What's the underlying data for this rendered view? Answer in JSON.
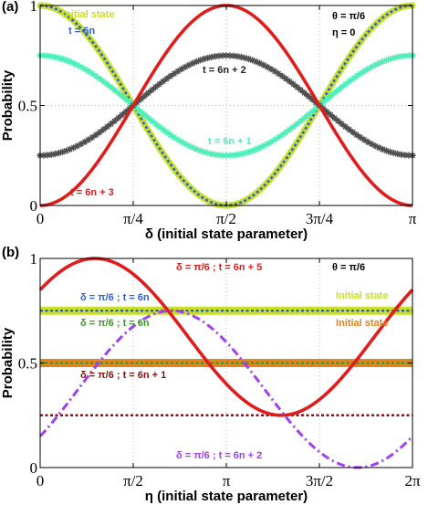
{
  "chart_data": [
    {
      "type": "line",
      "panel_label": "(a)",
      "xlabel": "δ (initial state parameter)",
      "ylabel": "Probability",
      "xlim": [
        0,
        3.14159
      ],
      "ylim": [
        0,
        1
      ],
      "xticks": [
        {
          "value": 0,
          "label": "0"
        },
        {
          "value": 0.7854,
          "label": "π/4"
        },
        {
          "value": 1.5708,
          "label": "π/2"
        },
        {
          "value": 2.3562,
          "label": "3π/4"
        },
        {
          "value": 3.14159,
          "label": "π"
        }
      ],
      "yticks": [
        {
          "value": 0,
          "label": "0"
        },
        {
          "value": 0.5,
          "label": "0.5"
        },
        {
          "value": 1,
          "label": "1"
        }
      ],
      "grid": "dotted",
      "params_text": [
        "θ = π/6",
        "η = 0"
      ],
      "series": [
        {
          "name": "Initial state",
          "color": "#c8e02c",
          "formula": "cos2",
          "amp": 1.0,
          "offset": 0,
          "style": "thick"
        },
        {
          "name": "t = 6n",
          "color": "#2f5fd8",
          "formula": "cos2",
          "amp": 1.0,
          "offset": 0,
          "style": "dotted"
        },
        {
          "name": "t = 6n + 1",
          "color": "#4ef0b8",
          "formula": "cos2",
          "amp": 0.5,
          "offset": 0.25,
          "style": "star"
        },
        {
          "name": "t = 6n + 2",
          "color": "#505050",
          "formula": "sin2",
          "amp": 0.5,
          "offset": 0.25,
          "style": "star"
        },
        {
          "name": "t = 6n + 3",
          "color": "#e01c1c",
          "formula": "sin2",
          "amp": 1.0,
          "offset": 0,
          "style": "solid"
        }
      ]
    },
    {
      "type": "line",
      "panel_label": "(b)",
      "xlabel": "η (initial state parameter)",
      "ylabel": "Probability",
      "xlim": [
        0,
        6.28318
      ],
      "ylim": [
        0,
        1
      ],
      "xticks": [
        {
          "value": 0,
          "label": "0"
        },
        {
          "value": 1.5708,
          "label": "π/2"
        },
        {
          "value": 3.14159,
          "label": "π"
        },
        {
          "value": 4.71239,
          "label": "3π/2"
        },
        {
          "value": 6.28318,
          "label": "2π"
        }
      ],
      "yticks": [
        {
          "value": 0,
          "label": "0"
        },
        {
          "value": 0.5,
          "label": "0.5"
        },
        {
          "value": 1,
          "label": "1"
        }
      ],
      "grid": "dotted",
      "params_text": [
        "θ = π/6"
      ],
      "series": [
        {
          "name": "Initial state",
          "color": "#c8e02c",
          "formula": "const",
          "value": 0.75,
          "style": "band"
        },
        {
          "name": "δ = π/6 ; t = 6n",
          "color": "#2f5fd8",
          "formula": "const",
          "value": 0.75,
          "style": "dotted"
        },
        {
          "name": "Initial state",
          "color": "#e8821c",
          "formula": "const",
          "value": 0.5,
          "style": "band"
        },
        {
          "name": "δ = π/6 ; t = 6n",
          "color": "#3a9a2a",
          "formula": "const",
          "value": 0.5,
          "style": "dotted"
        },
        {
          "name": "δ = π/6 ; t = 6n + 1",
          "color": "#8b1010",
          "formula": "const",
          "value": 0.25,
          "style": "dotted"
        },
        {
          "name": "δ = π/6 ; t = 6n + 5",
          "color": "#e01c1c",
          "formula": "sinshift",
          "mid": 0.625,
          "amp": 0.375,
          "phase": 0.6435,
          "style": "solid"
        },
        {
          "name": "δ = π/6 ; t = 6n + 2",
          "color": "#a040f0",
          "formula": "sinshift",
          "mid": 0.375,
          "amp": 0.375,
          "phase": -0.6435,
          "style": "dashdot"
        }
      ]
    }
  ],
  "annotations_a": [
    {
      "text": "Initial state",
      "color": "#c8e02c",
      "series": 0
    },
    {
      "text": "t = 6n",
      "color": "#2f5fd8",
      "series": 1
    },
    {
      "text": "t = 6n + 2",
      "color": "#222222",
      "series": 3
    },
    {
      "text": "t = 6n + 1",
      "color": "#4ef0b8",
      "series": 2
    },
    {
      "text": "t = 6n + 3",
      "color": "#e01c1c",
      "series": 4
    }
  ],
  "annotations_b": [
    {
      "text": "δ = π/6 ; t = 6n + 5",
      "color": "#e01c1c"
    },
    {
      "text": "δ = π/6 ; t = 6n",
      "color": "#2f5fd8"
    },
    {
      "text": "Initial state",
      "color": "#c8e02c"
    },
    {
      "text": "δ = π/6 ; t = 6n",
      "color": "#3a9a2a"
    },
    {
      "text": "Initial state",
      "color": "#e8821c"
    },
    {
      "text": "δ = π/6 ; t = 6n + 1",
      "color": "#8b1010"
    },
    {
      "text": "δ = π/6 ; t = 6n + 2",
      "color": "#a040f0"
    }
  ]
}
